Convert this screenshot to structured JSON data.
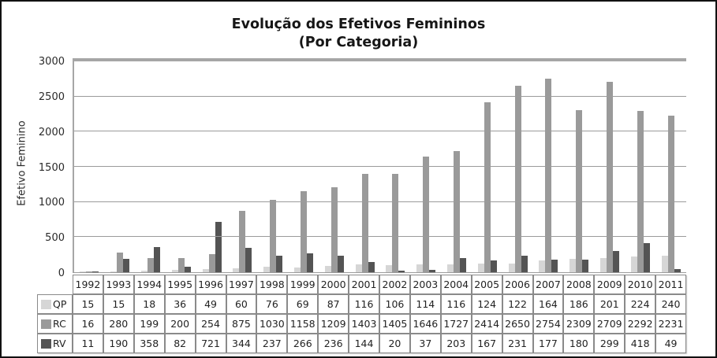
{
  "title": {
    "line1": "Evolução dos Efetivos Femininos",
    "line2": "(Por Categoria)"
  },
  "chart_data": {
    "type": "bar",
    "title": "Evolução dos Efetivos Femininos (Por Categoria)",
    "xlabel": "",
    "ylabel": "Efetivo Feminino",
    "ylim": [
      0,
      3000
    ],
    "yticks": [
      0,
      500,
      1000,
      1500,
      2000,
      2500,
      3000
    ],
    "grid": true,
    "legend_position": "table-left",
    "categories": [
      "1992",
      "1993",
      "1994",
      "1995",
      "1996",
      "1997",
      "1998",
      "1999",
      "2000",
      "2001",
      "2002",
      "2003",
      "2004",
      "2005",
      "2006",
      "2007",
      "2008",
      "2009",
      "2010",
      "2011"
    ],
    "series": [
      {
        "name": "QP",
        "color": "#d6d6d6",
        "values": [
          15,
          15,
          18,
          36,
          49,
          60,
          76,
          69,
          87,
          116,
          106,
          114,
          116,
          124,
          122,
          164,
          186,
          201,
          224,
          240
        ]
      },
      {
        "name": "RC",
        "color": "#9a9a9a",
        "values": [
          16,
          280,
          199,
          200,
          254,
          875,
          1030,
          1158,
          1209,
          1403,
          1405,
          1646,
          1727,
          2414,
          2650,
          2754,
          2309,
          2709,
          2292,
          2231
        ]
      },
      {
        "name": "RV",
        "color": "#545454",
        "values": [
          11,
          190,
          358,
          82,
          721,
          344,
          237,
          266,
          236,
          144,
          20,
          37,
          203,
          167,
          231,
          177,
          180,
          299,
          418,
          49
        ]
      }
    ]
  },
  "colors": {
    "gridline": "#9b9b9b",
    "axis": "#a6a6a6",
    "table_border": "#8a8a8a",
    "text": "#1a1a1a"
  }
}
